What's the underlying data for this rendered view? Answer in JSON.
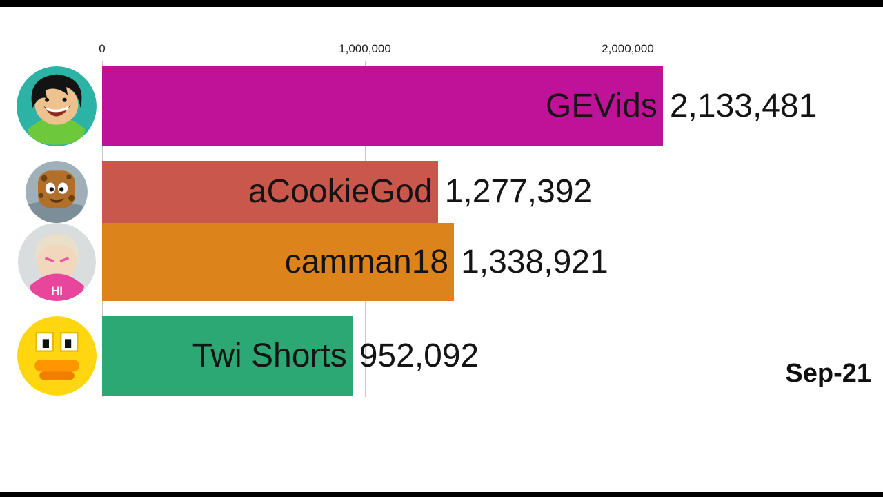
{
  "chart_data": {
    "type": "bar",
    "orientation": "horizontal",
    "title": "",
    "date_label": "Sep-21",
    "x_axis": {
      "tick_labels": [
        "0",
        "1,000,000",
        "2,000,000"
      ],
      "tick_values": [
        0,
        1000000,
        2000000
      ],
      "range": [
        0,
        2200000
      ],
      "grid": true
    },
    "legend": "none",
    "series": [
      {
        "name": "GEVids",
        "value": 2133481,
        "value_label": "2,133,481",
        "color": "#c01199",
        "avatar": "gevids-avatar"
      },
      {
        "name": "aCookieGod",
        "value": 1277392,
        "value_label": "1,277,392",
        "color": "#c9574b",
        "avatar": "acookiegod-avatar"
      },
      {
        "name": "camman18",
        "value": 1338921,
        "value_label": "1,338,921",
        "color": "#dc831c",
        "avatar": "camman18-avatar"
      },
      {
        "name": "Twi Shorts",
        "value": 952092,
        "value_label": "952,092",
        "color": "#2ba873",
        "avatar": "twishorts-avatar"
      }
    ]
  }
}
